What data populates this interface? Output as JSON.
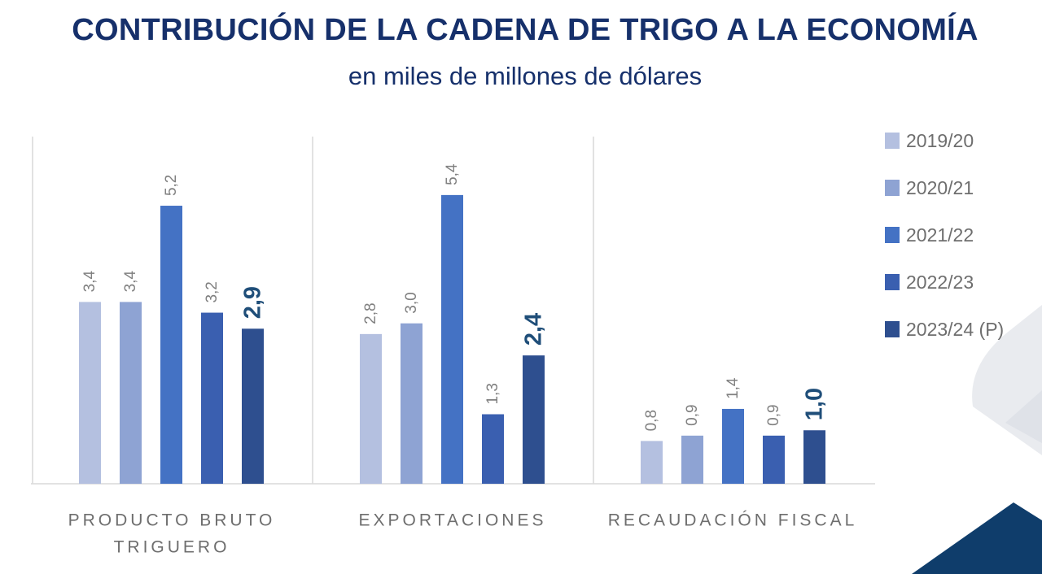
{
  "title": "CONTRIBUCIÓN DE LA CADENA DE TRIGO A LA ECONOMÍA",
  "subtitle": "en miles de millones de dólares",
  "colors": {
    "title": "#16306b",
    "axis": "#d9d9d9",
    "label": "#808080",
    "highlight_label": "#1f4e79",
    "category_label": "#6e6e6e",
    "decor_gray": "#e9ebef",
    "decor_navy": "#0f3d6b"
  },
  "chart_data": {
    "type": "bar",
    "title": "CONTRIBUCIÓN DE LA CADENA DE TRIGO A LA ECONOMÍA",
    "subtitle": "en miles de millones de dólares",
    "categories": [
      [
        "PRODUCTO BRUTO",
        "TRIGUERO"
      ],
      [
        "EXPORTACIONES"
      ],
      [
        "RECAUDACIÓN FISCAL"
      ]
    ],
    "series": [
      {
        "name": "2019/20",
        "color": "#b4c0e0",
        "values": [
          3.4,
          2.8,
          0.8
        ],
        "labels": [
          "3,4",
          "2,8",
          "0,8"
        ]
      },
      {
        "name": "2020/21",
        "color": "#8ea3d3",
        "values": [
          3.4,
          3.0,
          0.9
        ],
        "labels": [
          "3,4",
          "3,0",
          "0,9"
        ]
      },
      {
        "name": "2021/22",
        "color": "#4472c4",
        "values": [
          5.2,
          5.4,
          1.4
        ],
        "labels": [
          "5,2",
          "5,4",
          "1,4"
        ]
      },
      {
        "name": "2022/23",
        "color": "#3a5fb0",
        "values": [
          3.2,
          1.3,
          0.9
        ],
        "labels": [
          "3,2",
          "1,3",
          "0,9"
        ]
      },
      {
        "name": "2023/24 (P)",
        "color": "#2e4f8f",
        "values": [
          2.9,
          2.4,
          1.0
        ],
        "labels": [
          "2,9",
          "2,4",
          "1,0"
        ],
        "highlight": true
      }
    ],
    "ylim": [
      0,
      5.9
    ],
    "grid": false,
    "legend": "right"
  }
}
